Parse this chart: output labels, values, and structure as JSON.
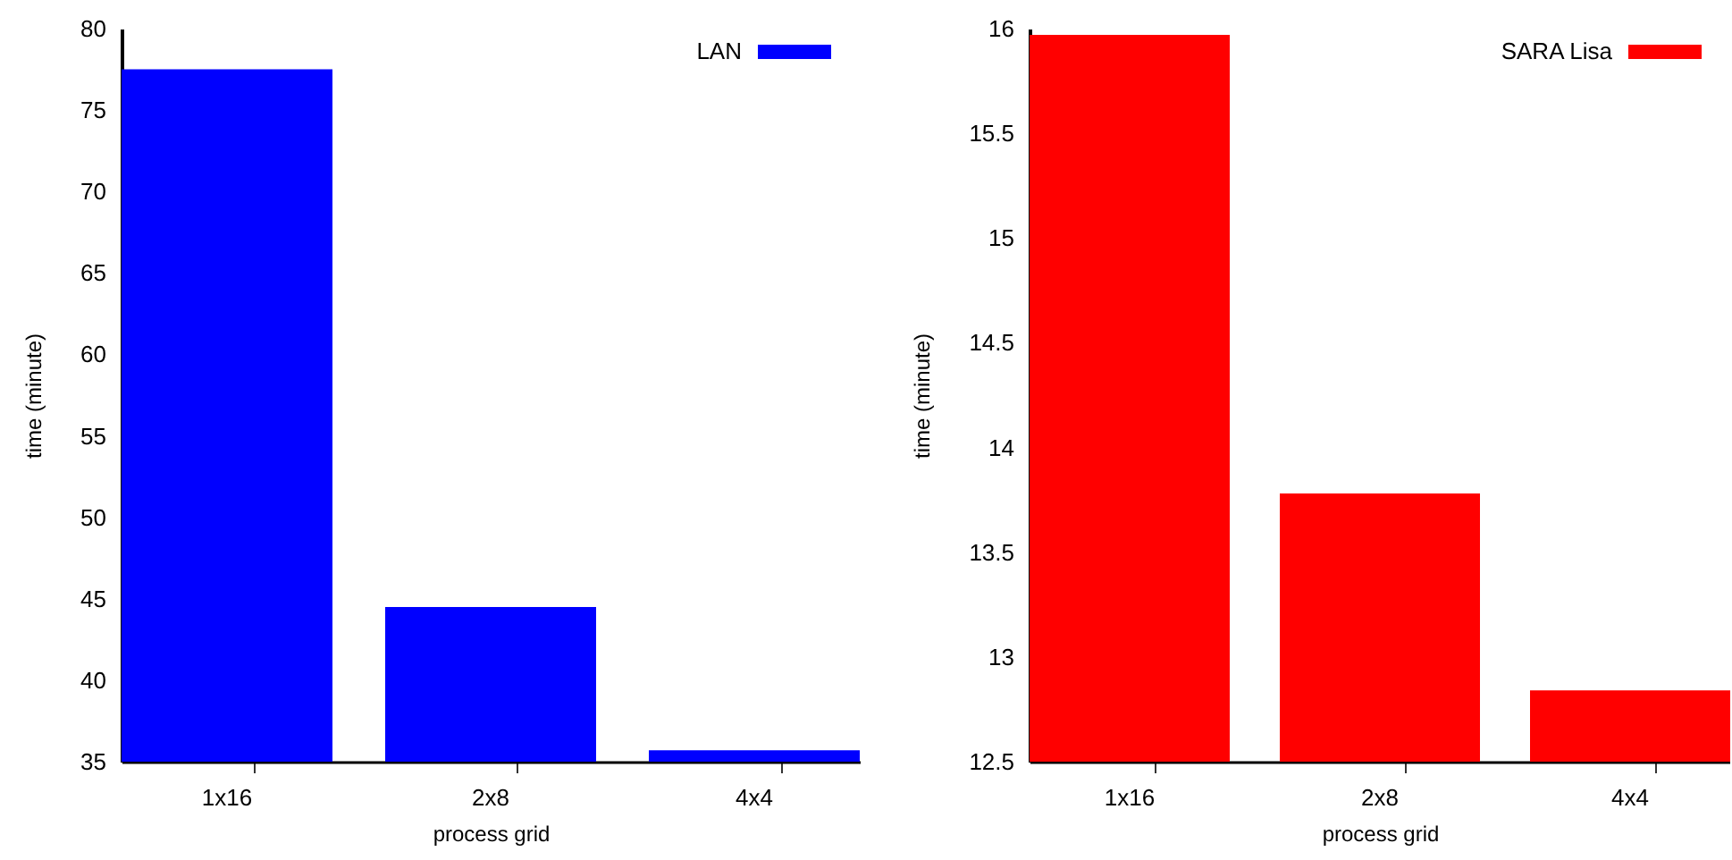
{
  "chart_data": [
    {
      "type": "bar",
      "categories": [
        "1x16",
        "2x8",
        "4x4"
      ],
      "series": [
        {
          "name": "LAN",
          "color": "#0000ff",
          "values": [
            77.5,
            44.5,
            35.7
          ]
        }
      ],
      "xlabel": "process grid",
      "ylabel": "time (minute)",
      "ylim": [
        35,
        80
      ],
      "yticks": [
        35,
        40,
        45,
        50,
        55,
        60,
        65,
        70,
        75,
        80
      ],
      "legend": "top right"
    },
    {
      "type": "bar",
      "categories": [
        "1x16",
        "2x8",
        "4x4"
      ],
      "series": [
        {
          "name": "SARA Lisa",
          "color": "#ff0000",
          "values": [
            15.97,
            13.78,
            12.84
          ]
        }
      ],
      "xlabel": "process grid",
      "ylabel": "time (minute)",
      "ylim": [
        12.5,
        16
      ],
      "yticks": [
        12.5,
        13,
        13.5,
        14,
        14.5,
        15,
        15.5,
        16
      ],
      "legend": "top right"
    }
  ]
}
